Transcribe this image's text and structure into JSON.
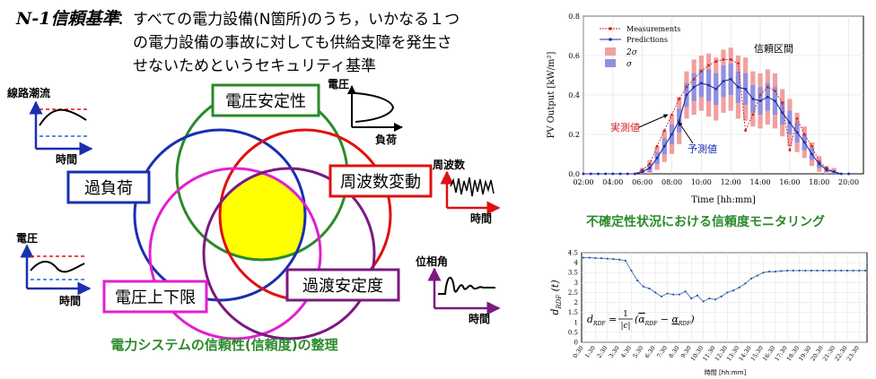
{
  "header": {
    "term": "N-1信頼基準",
    "colon": "：",
    "lines": [
      "すべての電力設備(N箇所)のうち，いかなる１つ",
      "の電力設備の事故に対しても供給支障を発生さ",
      "せないためというセキュリティ基準"
    ]
  },
  "venn": {
    "labels": {
      "voltage_stability": "電圧安定性",
      "overload": "過負荷",
      "frequency": "周波数変動",
      "voltage_limits": "電圧上下限",
      "transient": "過渡安定度"
    },
    "caption": "電力システムの信頼性(信頼度)の整理",
    "colors": {
      "voltage_stability": "#2a8a2a",
      "overload": "#1a2fb0",
      "frequency": "#e01010",
      "voltage_limits": "#e020d0",
      "transient": "#7a1a80",
      "overlap": "#ffff00"
    }
  },
  "mini_charts": {
    "line_flow": {
      "ylabel": "線路潮流",
      "xlabel": "時間"
    },
    "pv_curve": {
      "ylabel": "電圧",
      "xlabel": "負荷"
    },
    "frequency": {
      "ylabel": "周波数",
      "xlabel": "時間"
    },
    "voltage": {
      "ylabel": "電圧",
      "xlabel": "時間"
    },
    "phase": {
      "ylabel": "位相角",
      "xlabel": "時間"
    }
  },
  "chart_data": [
    {
      "type": "line",
      "title": "",
      "xlabel": "Time [hh:mm]",
      "ylabel": "PV Output [kW/m²]",
      "x_ticks": [
        "02:00",
        "04:00",
        "06:00",
        "08:00",
        "10:00",
        "12:00",
        "14:00",
        "16:00",
        "18:00",
        "20:00"
      ],
      "y_ticks": [
        "0.0",
        "0.2",
        "0.4",
        "0.6",
        "0.8"
      ],
      "xlim": [
        2,
        21
      ],
      "ylim": [
        0,
        0.8
      ],
      "legend": [
        "Measurements",
        "Predictions",
        "2σ",
        "σ"
      ],
      "legend_position": "top-left",
      "annotations": [
        "信頼区間",
        "実測値",
        "予測値"
      ],
      "x": [
        2,
        2.5,
        3,
        3.5,
        4,
        4.5,
        5,
        5.5,
        6,
        6.5,
        7,
        7.5,
        8,
        8.5,
        9,
        9.5,
        10,
        10.5,
        11,
        11.5,
        12,
        12.5,
        13,
        13.5,
        14,
        14.5,
        15,
        15.5,
        16,
        16.5,
        17,
        17.5,
        18,
        18.5,
        19,
        19.5,
        20
      ],
      "series": [
        {
          "name": "Measurements",
          "values": [
            0,
            0,
            0,
            0,
            0,
            0,
            0,
            0,
            0.02,
            0.05,
            0.14,
            0.22,
            0.3,
            0.38,
            0.44,
            0.48,
            0.52,
            0.55,
            0.57,
            0.58,
            0.58,
            0.56,
            0.22,
            0.3,
            0.4,
            0.44,
            0.42,
            0.36,
            0.12,
            0.28,
            0.2,
            0.14,
            0.06,
            0.03,
            0.01,
            0,
            0
          ]
        },
        {
          "name": "Predictions",
          "values": [
            0,
            0,
            0,
            0,
            0,
            0,
            0,
            0,
            0.01,
            0.03,
            0.08,
            0.14,
            0.2,
            0.27,
            0.4,
            0.44,
            0.46,
            0.45,
            0.43,
            0.47,
            0.48,
            0.44,
            0.43,
            0.38,
            0.37,
            0.39,
            0.37,
            0.31,
            0.26,
            0.21,
            0.16,
            0.1,
            0.05,
            0.02,
            0.01,
            0,
            0
          ]
        }
      ],
      "sigma": [
        0,
        0,
        0,
        0,
        0,
        0,
        0,
        0,
        0.01,
        0.02,
        0.03,
        0.04,
        0.05,
        0.06,
        0.06,
        0.07,
        0.07,
        0.08,
        0.08,
        0.08,
        0.08,
        0.08,
        0.08,
        0.07,
        0.07,
        0.07,
        0.07,
        0.06,
        0.06,
        0.05,
        0.04,
        0.03,
        0.02,
        0.01,
        0.01,
        0,
        0
      ],
      "colors": {
        "Measurements": "#d02020",
        "Predictions": "#1a2fa0",
        "band2": "#f0a0a0",
        "band1": "#9090e0"
      }
    },
    {
      "type": "line",
      "xlabel": "時間 [hh:mm]",
      "ylabel": "d_RDF (t)",
      "formula": {
        "lhs": "d",
        "lhs_sub": "RDF",
        "num": "1",
        "den": "|c|",
        "body_a": "α",
        "body_a_sub": "RDF",
        "minus": " − ",
        "body_b": "α",
        "body_b_sub": "RDF"
      },
      "y_ticks": [
        "0",
        "0.5",
        "1",
        "1.5",
        "2",
        "2.5",
        "3",
        "3.5",
        "4",
        "4.5"
      ],
      "ylim": [
        0,
        4.5
      ],
      "x_ticks": [
        "0:30",
        "1:30",
        "2:30",
        "3:30",
        "4:30",
        "5:30",
        "6:30",
        "7:30",
        "8:30",
        "9:30",
        "10:30",
        "11:30",
        "12:30",
        "13:30",
        "14:30",
        "15:30",
        "16:30",
        "17:30",
        "18:30",
        "19:30",
        "20:30",
        "21:30",
        "22:30",
        "23:30"
      ],
      "values": [
        4.25,
        4.25,
        4.23,
        4.22,
        4.2,
        4.18,
        4.15,
        4.1,
        3.6,
        3.1,
        2.8,
        2.7,
        2.5,
        2.3,
        2.45,
        2.4,
        2.4,
        2.55,
        2.2,
        2.35,
        2.05,
        2.2,
        2.15,
        2.3,
        2.5,
        2.6,
        2.75,
        2.95,
        3.2,
        3.35,
        3.5,
        3.55,
        3.55,
        3.58,
        3.6,
        3.6,
        3.6,
        3.6,
        3.6,
        3.6,
        3.6,
        3.6,
        3.6,
        3.6,
        3.6,
        3.6,
        3.6,
        3.6
      ]
    }
  ],
  "monitor_caption": "不確定性状況における信頼度モニタリング"
}
